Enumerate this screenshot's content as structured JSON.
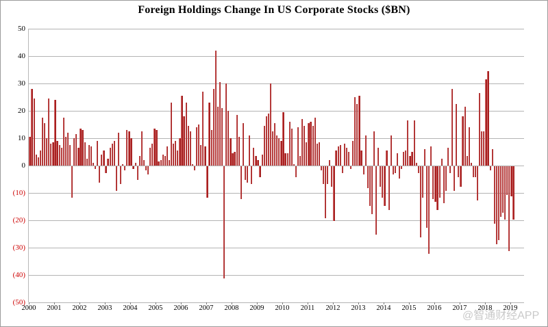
{
  "title": "Foreign Holdings Change In US Corporate Stocks ($BN)",
  "watermark": "@智通财经APP",
  "colors": {
    "bar": "#b32424",
    "bar_edge_light": "#dc9090",
    "bar_edge_dark": "#941616",
    "negative_tick_label": "#cc0000",
    "positive_tick_label": "#000000",
    "gridline": "#b3b3b3",
    "watermark": "#c9c9c9",
    "background": "#ffffff"
  },
  "chart_data": {
    "type": "bar",
    "title": "Foreign Holdings Change In US Corporate Stocks ($BN)",
    "xlabel": "",
    "ylabel": "",
    "ylim": [
      -50,
      50
    ],
    "grid": "horizontal",
    "legend": "none",
    "frequency": "monthly",
    "y_ticks": [
      {
        "value": 50,
        "label": "50"
      },
      {
        "value": 40,
        "label": "40"
      },
      {
        "value": 30,
        "label": "30"
      },
      {
        "value": 20,
        "label": "20"
      },
      {
        "value": 10,
        "label": "10"
      },
      {
        "value": 0,
        "label": "0"
      },
      {
        "value": -10,
        "label": "(10)"
      },
      {
        "value": -20,
        "label": "(20)"
      },
      {
        "value": -30,
        "label": "(30)"
      },
      {
        "value": -40,
        "label": "(40)"
      },
      {
        "value": -50,
        "label": "(50)"
      }
    ],
    "x_tick_years": [
      "2000",
      "2001",
      "2002",
      "2003",
      "2004",
      "2005",
      "2006",
      "2007",
      "2008",
      "2009",
      "2010",
      "2011",
      "2012",
      "2013",
      "2014",
      "2015",
      "2016",
      "2017",
      "2018",
      "2019"
    ],
    "series_by_year": [
      {
        "year": "2000",
        "values": [
          10.5,
          28,
          24.5,
          4,
          3,
          5.5,
          17.5,
          15.5,
          10,
          24.5,
          8,
          8.5
        ]
      },
      {
        "year": "2001",
        "values": [
          24,
          9,
          7.5,
          6.5,
          17.5,
          10.5,
          12,
          7.5,
          -11.5,
          10,
          11.5,
          6.5
        ]
      },
      {
        "year": "2002",
        "values": [
          13.5,
          13,
          8.5,
          2.5,
          7.5,
          7,
          1,
          -1,
          9,
          -6,
          4,
          5.5
        ]
      },
      {
        "year": "2003",
        "values": [
          -2.5,
          2.5,
          6.5,
          8,
          9,
          -9,
          12,
          -6.5,
          0.5,
          -1.5,
          13,
          12.5
        ]
      },
      {
        "year": "2004",
        "values": [
          10,
          -1,
          1,
          -5,
          3.5,
          12.5,
          2,
          -1.5,
          -3,
          6.5,
          8,
          13.5
        ]
      },
      {
        "year": "2005",
        "values": [
          13,
          1.5,
          2,
          4,
          3.5,
          7,
          2,
          23,
          8,
          9,
          5.5,
          10
        ]
      },
      {
        "year": "2006",
        "values": [
          25.5,
          18,
          23,
          14.5,
          12.5,
          0.5,
          -1.5,
          14,
          15,
          7.5,
          27,
          7
        ]
      },
      {
        "year": "2007",
        "values": [
          -11.5,
          23,
          13,
          28,
          42,
          21.5,
          30.5,
          21,
          -41,
          30,
          20,
          10
        ]
      },
      {
        "year": "2008",
        "values": [
          4.5,
          5,
          18.5,
          10.5,
          -12,
          15.5,
          -5,
          -6,
          11,
          -6.5,
          6.5,
          3.5
        ]
      },
      {
        "year": "2009",
        "values": [
          2,
          -4,
          4,
          14.5,
          18,
          19,
          30,
          12.5,
          15.5,
          11,
          10,
          9
        ]
      },
      {
        "year": "2010",
        "values": [
          19.5,
          4.5,
          4.5,
          16,
          13.5,
          0.5,
          -4,
          14,
          3.5,
          17,
          14.5,
          8.5
        ]
      },
      {
        "year": "2011",
        "values": [
          15.5,
          16,
          14.5,
          17.5,
          8,
          8.5,
          -1.5,
          -6.5,
          -19,
          -6.5,
          2,
          -7.5
        ]
      },
      {
        "year": "2012",
        "values": [
          -20,
          5.5,
          7,
          7.5,
          -2.5,
          8,
          6.5,
          5,
          -1,
          9,
          25,
          22.5
        ]
      },
      {
        "year": "2013",
        "values": [
          25.5,
          5.5,
          -3,
          11,
          -8,
          -14.5,
          -17.5,
          12.5,
          -25,
          6.5,
          -7.5,
          -11.5
        ]
      },
      {
        "year": "2014",
        "values": [
          -14.5,
          5.5,
          -16,
          11,
          -3,
          -2.5,
          4.5,
          -4.5,
          -1,
          5,
          5.5,
          16.5
        ]
      },
      {
        "year": "2015",
        "values": [
          3.5,
          5,
          16.5,
          1,
          -2.5,
          -26,
          -11.5,
          6,
          -22.5,
          -32,
          7,
          -12
        ]
      },
      {
        "year": "2016",
        "values": [
          -13,
          -16,
          -11.5,
          2.5,
          -13.5,
          -9,
          6.5,
          -2.5,
          28,
          -9,
          22.5,
          -4
        ]
      },
      {
        "year": "2017",
        "values": [
          -7.5,
          18,
          21.5,
          3.5,
          14,
          1,
          -4,
          -4,
          -12.5,
          26.5,
          12.5,
          12.5
        ]
      },
      {
        "year": "2018",
        "values": [
          31.5,
          34.5,
          -1.5,
          6,
          -21,
          -28.5,
          -27,
          -18.5,
          -17,
          -19.5,
          -10.5,
          -31
        ]
      },
      {
        "year": "2019",
        "values": [
          -11,
          -19.5
        ]
      }
    ]
  }
}
